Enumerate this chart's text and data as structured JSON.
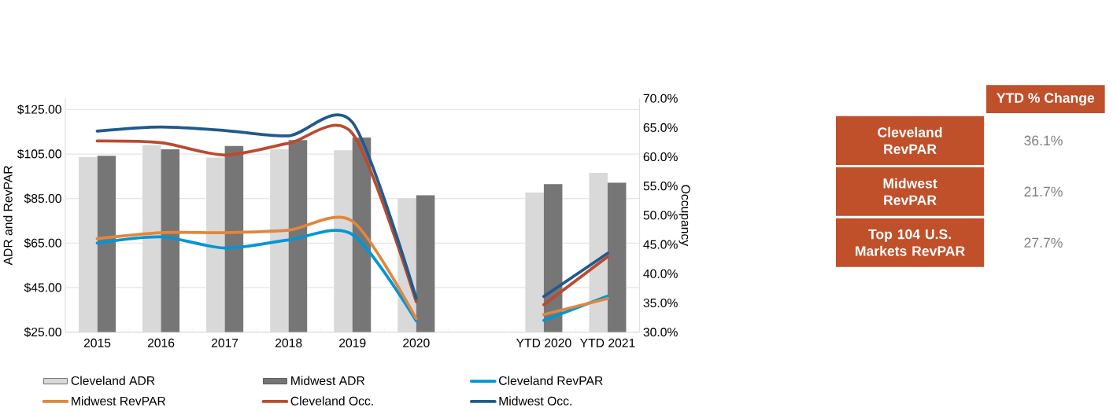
{
  "chart_data": [
    {
      "type": "bar",
      "ylabel": "ADR and RevPAR",
      "y2label": "Occupancy",
      "categories": [
        "2015",
        "2016",
        "2017",
        "2018",
        "2019",
        "2020",
        null,
        "YTD 2020",
        "YTD 2021"
      ],
      "series": [
        {
          "name": "Cleveland ADR",
          "type": "bar",
          "color": "#d9d9d9",
          "values": [
            103.7,
            109.0,
            103.4,
            107.1,
            106.7,
            85.1,
            null,
            87.7,
            96.5
          ]
        },
        {
          "name": "Midwest ADR",
          "type": "bar",
          "color": "#767676",
          "values": [
            104.2,
            107.1,
            108.6,
            111.3,
            112.4,
            86.5,
            null,
            91.5,
            92.1
          ]
        },
        {
          "name": "Cleveland RevPAR",
          "type": "line",
          "color": "#0096d6",
          "values": [
            65.0,
            67.8,
            62.8,
            66.4,
            68.9,
            30.1,
            null,
            30.3,
            41.2
          ]
        },
        {
          "name": "Midwest RevPAR",
          "type": "line",
          "color": "#e0873e",
          "values": [
            67.0,
            69.7,
            69.7,
            70.8,
            74.8,
            31.0,
            null,
            32.9,
            40.1
          ]
        },
        {
          "name": "Cleveland Occ.",
          "type": "line",
          "axis": "y2",
          "color": "#bb4a2e",
          "values": [
            62.7,
            62.4,
            60.3,
            62.3,
            64.0,
            35.2,
            null,
            34.7,
            42.9
          ]
        },
        {
          "name": "Midwest Occ.",
          "type": "line",
          "axis": "y2",
          "color": "#215a8c",
          "values": [
            64.4,
            65.1,
            64.5,
            63.6,
            65.9,
            35.8,
            null,
            36.1,
            43.5
          ]
        }
      ],
      "ylim": [
        25,
        130
      ],
      "yticks": [
        {
          "value": 25,
          "label": "$25.00"
        },
        {
          "value": 45,
          "label": "$45.00"
        },
        {
          "value": 65,
          "label": "$65.00"
        },
        {
          "value": 85,
          "label": "$85.00"
        },
        {
          "value": 105,
          "label": "$105.00"
        },
        {
          "value": 125,
          "label": "$125.00"
        }
      ],
      "y2lim": [
        30,
        70
      ],
      "y2ticks": [
        {
          "value": 30,
          "label": "30.0%"
        },
        {
          "value": 35,
          "label": "35.0%"
        },
        {
          "value": 40,
          "label": "40.0%"
        },
        {
          "value": 45,
          "label": "45.0%"
        },
        {
          "value": 50,
          "label": "50.0%"
        },
        {
          "value": 55,
          "label": "55.0%"
        },
        {
          "value": 60,
          "label": "60.0%"
        },
        {
          "value": 65,
          "label": "65.0%"
        },
        {
          "value": 70,
          "label": "70.0%"
        }
      ],
      "grid": "y",
      "legend": "bottom",
      "line_style": "solid",
      "marker": "none"
    },
    {
      "type": "other",
      "title": "YTD % Change",
      "color": "#c0502a",
      "categories": [
        "Cleveland RevPAR",
        "Midwest RevPAR",
        "Top 104 U.S. Markets RevPAR"
      ],
      "value_labels": [
        "36.1%",
        "21.7%",
        "27.7%"
      ]
    }
  ]
}
